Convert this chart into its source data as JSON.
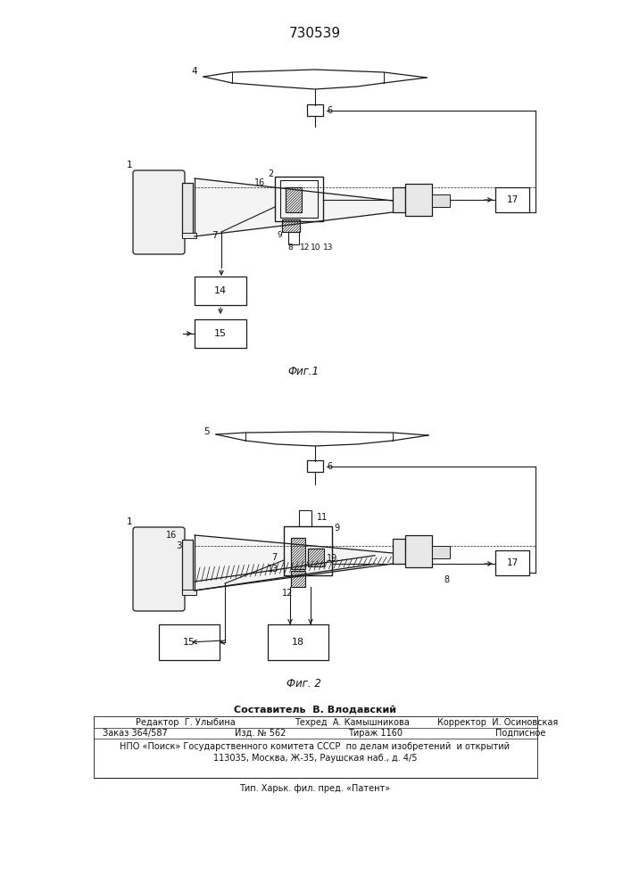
{
  "patent_number": "730539",
  "fig1_caption": "Фиг.1",
  "fig2_caption": "Фиг. 2",
  "composer_line": "Составитель  В. Влодавский",
  "editor_line": "Редактор  Г. Улыбина",
  "techred_line": "Техред  А. Камышникова",
  "corrector_line": "Корректор  И. Осиновская",
  "order_line": "Заказ 364/587",
  "izd_line": "Изд. № 562",
  "tirazh_line": "Тираж 1160",
  "podpisnoe_line": "Подписное",
  "npo_line": "НПО «Поиск» Государственного комитета СССР  по делам изобретений  и открытий",
  "address_line": "113035, Москва, Ж-35, Раушская наб., д. 4/5",
  "tip_line": "Тип. Харьк. фил. пред. «Патент»",
  "bg_color": "#ffffff",
  "line_color": "#1a1a1a",
  "text_color": "#111111"
}
